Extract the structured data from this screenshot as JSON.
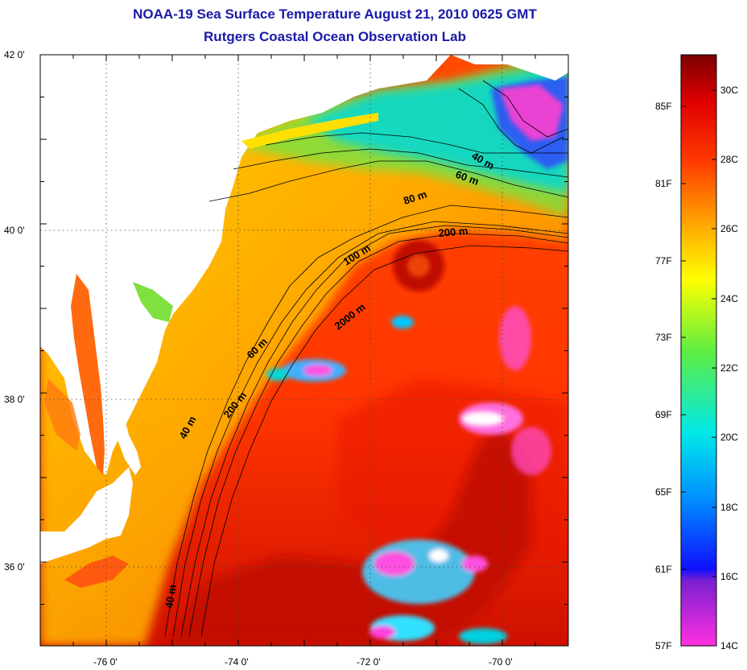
{
  "title_line1": "NOAA-19 Sea Surface Temperature August 21, 2010 0625 GMT",
  "title_line2": "Rutgers Coastal Ocean Observation Lab",
  "lat_ticks": [
    {
      "label": "42 0'",
      "lat": 42
    },
    {
      "label": "40 0'",
      "lat": 40
    },
    {
      "label": "38 0'",
      "lat": 38
    },
    {
      "label": "36 0'",
      "lat": 36
    }
  ],
  "lon_ticks": [
    {
      "label": "-76 0'",
      "lon": -76
    },
    {
      "label": "-74 0'",
      "lon": -74
    },
    {
      "label": "-72 0'",
      "lon": -72
    },
    {
      "label": "-70 0'",
      "lon": -70
    }
  ],
  "depth_labels": [
    "40 m",
    "60 m",
    "80 m",
    "200 m",
    "100 m",
    "2000 m",
    "60 m",
    "200 m",
    "40 m",
    "40 m"
  ],
  "colorbar": {
    "fahrenheit": [
      "85F",
      "81F",
      "77F",
      "73F",
      "69F",
      "65F",
      "61F",
      "57F"
    ],
    "celsius": [
      "30C",
      "28C",
      "26C",
      "24C",
      "22C",
      "20C",
      "18C",
      "16C",
      "14C"
    ]
  },
  "colors": {
    "title": "#1a1aa8",
    "sst_warm": "#ff3a00",
    "gulf_stream": "#c00a00",
    "shelf": "#ffc000",
    "cold": "#00e0e0",
    "cloud": "#ff40d0"
  }
}
